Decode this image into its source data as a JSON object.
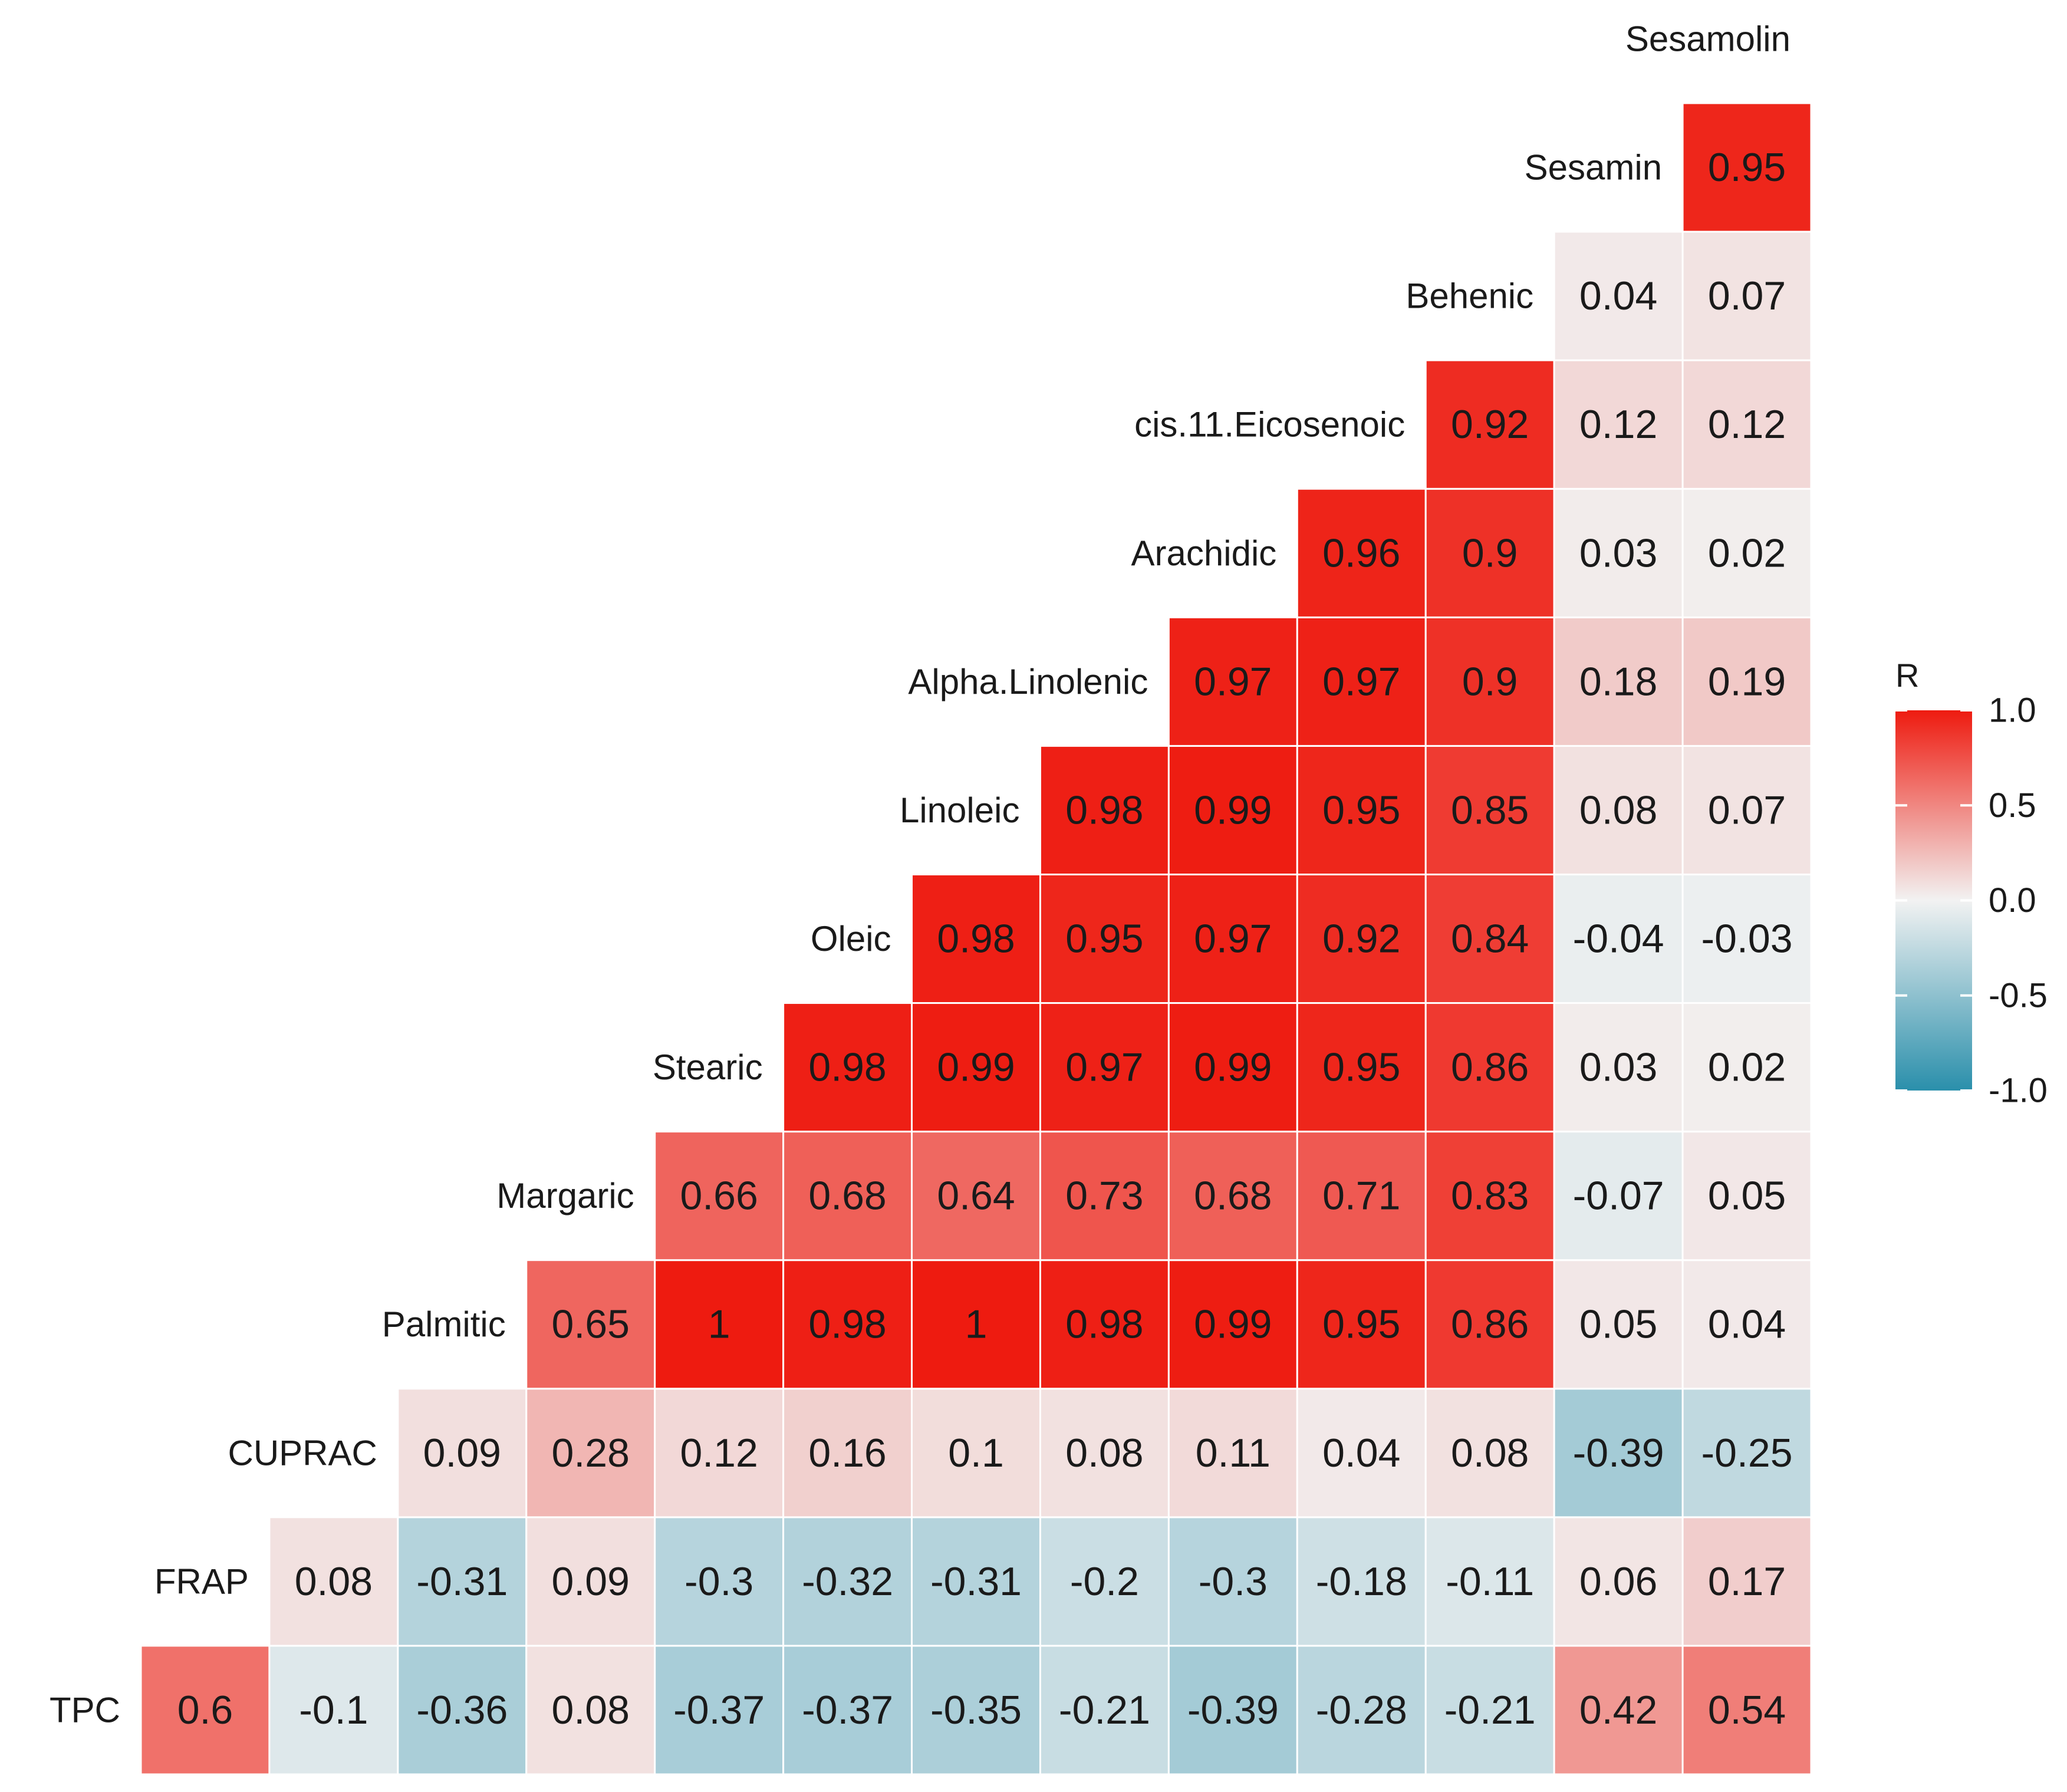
{
  "chart_data": {
    "type": "heatmap",
    "title": "",
    "variables": [
      "TPC",
      "FRAP",
      "CUPRAC",
      "Palmitic",
      "Margaric",
      "Stearic",
      "Oleic",
      "Linoleic",
      "Alpha.Linolenic",
      "Arachidic",
      "cis.11.Eicosenoic",
      "Behenic",
      "Sesamin",
      "Sesamolin"
    ],
    "row_labels": [
      "TPC",
      "FRAP",
      "CUPRAC",
      "Palmitic",
      "Margaric",
      "Stearic",
      "Oleic",
      "Linoleic",
      "Alpha.Linolenic",
      "Arachidic",
      "cis.11.Eicosenoic",
      "Behenic",
      "Sesamin",
      "Sesamolin"
    ],
    "matrix": [
      [
        "0.6",
        "-0.1",
        "-0.36",
        "0.08",
        "-0.37",
        "-0.37",
        "-0.35",
        "-0.21",
        "-0.39",
        "-0.28",
        "-0.21",
        "0.42",
        "0.54"
      ],
      [
        "0.08",
        "-0.31",
        "0.09",
        "-0.3",
        "-0.32",
        "-0.31",
        "-0.2",
        "-0.3",
        "-0.18",
        "-0.11",
        "0.06",
        "0.17"
      ],
      [
        "0.09",
        "0.28",
        "0.12",
        "0.16",
        "0.1",
        "0.08",
        "0.11",
        "0.04",
        "0.08",
        "-0.39",
        "-0.25"
      ],
      [
        "0.65",
        "1",
        "0.98",
        "1",
        "0.98",
        "0.99",
        "0.95",
        "0.86",
        "0.05",
        "0.04"
      ],
      [
        "0.66",
        "0.68",
        "0.64",
        "0.73",
        "0.68",
        "0.71",
        "0.83",
        "-0.07",
        "0.05"
      ],
      [
        "0.98",
        "0.99",
        "0.97",
        "0.99",
        "0.95",
        "0.86",
        "0.03",
        "0.02"
      ],
      [
        "0.98",
        "0.95",
        "0.97",
        "0.92",
        "0.84",
        "-0.04",
        "-0.03"
      ],
      [
        "0.98",
        "0.99",
        "0.95",
        "0.85",
        "0.08",
        "0.07"
      ],
      [
        "0.97",
        "0.97",
        "0.9",
        "0.18",
        "0.19"
      ],
      [
        "0.96",
        "0.9",
        "0.03",
        "0.02"
      ],
      [
        "0.92",
        "0.12",
        "0.12"
      ],
      [
        "0.04",
        "0.07"
      ],
      [
        "0.95"
      ],
      []
    ],
    "legend": {
      "title": "R",
      "ticks": [
        "1.0",
        "0.5",
        "0.0",
        "-0.5",
        "-1.0"
      ],
      "range": [
        -1,
        1
      ],
      "position": "right"
    },
    "color_scale": {
      "low": "#2a8fab",
      "mid": "#f2f2f2",
      "high": "#ee1b10"
    },
    "grid": false
  }
}
